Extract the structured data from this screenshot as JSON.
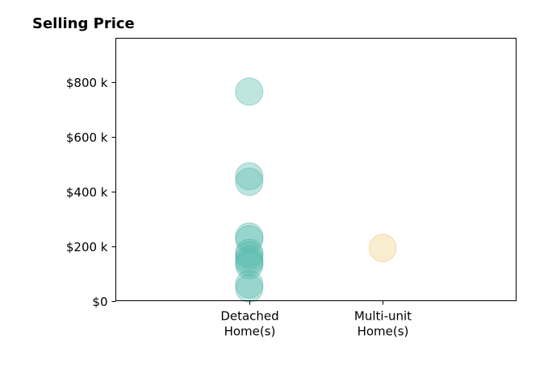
{
  "chart_data": {
    "type": "scatter",
    "title": "Selling Price",
    "xlabel": "",
    "ylabel": "",
    "categories": [
      [
        "Detached",
        "Home(s)"
      ],
      [
        "Multi-unit",
        "Home(s)"
      ]
    ],
    "x_range": [
      -1,
      2
    ],
    "ylim": [
      0,
      960000
    ],
    "y_ticks": [
      0,
      200000,
      400000,
      600000,
      800000
    ],
    "y_tick_labels": [
      "$0",
      "$200 k",
      "$400 k",
      "$600 k",
      "$800 k"
    ],
    "grid": false,
    "legend": "none",
    "series": [
      {
        "category_index": 0,
        "color": "#5fbfb2",
        "edge_color": "#3fa898",
        "opacity": 0.4,
        "values": [
          765000,
          455000,
          435000,
          235000,
          225000,
          175000,
          165000,
          150000,
          140000,
          130000,
          60000,
          45000
        ]
      },
      {
        "category_index": 1,
        "color": "#f6dfa8",
        "edge_color": "#ecc77a",
        "opacity": 0.55,
        "values": [
          193000
        ]
      }
    ]
  }
}
